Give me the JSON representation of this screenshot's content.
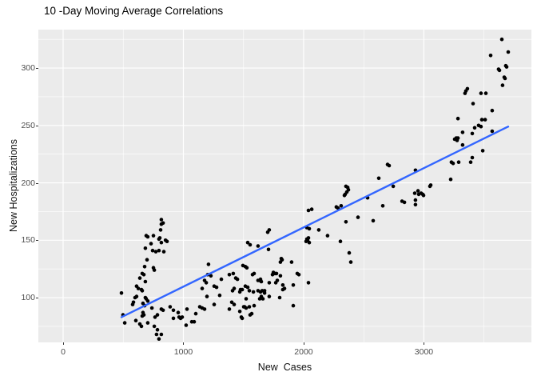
{
  "title": "10 -Day Moving Average Correlations",
  "chart_data": {
    "type": "scatter",
    "title": "10 -Day Moving Average Correlations",
    "xlabel": "New  Cases",
    "ylabel": "New Hospitalizations",
    "x_ticks": [
      0,
      1000,
      2000,
      3000
    ],
    "x_minor_ticks": [
      500,
      1500,
      2500,
      3500
    ],
    "y_ticks": [
      100,
      150,
      200,
      250,
      300
    ],
    "y_minor_ticks": [
      75,
      125,
      175,
      225,
      275,
      325
    ],
    "xlim": [
      -206,
      3894
    ],
    "ylim": [
      61,
      333.5
    ],
    "grid": true,
    "legend": "none",
    "colors": {
      "panel_background": "#EBEBEB",
      "grid_major": "#FFFFFF",
      "grid_minor": "#FFFFFF",
      "point": "#000000",
      "trend_line": "#3366FF",
      "axis_text": "#4D4D4D",
      "title_text": "#000000"
    },
    "trend_line": {
      "x1": 485,
      "y1": 83,
      "x2": 3701,
      "y2": 249
    },
    "points": [
      [
        485,
        104
      ],
      [
        498,
        85
      ],
      [
        512,
        78
      ],
      [
        578,
        94
      ],
      [
        585,
        96
      ],
      [
        598,
        100
      ],
      [
        605,
        80
      ],
      [
        611,
        110
      ],
      [
        611,
        101
      ],
      [
        625,
        108
      ],
      [
        638,
        117
      ],
      [
        638,
        77
      ],
      [
        651,
        107
      ],
      [
        651,
        75
      ],
      [
        658,
        121
      ],
      [
        658,
        106
      ],
      [
        658,
        84
      ],
      [
        664,
        95
      ],
      [
        664,
        87
      ],
      [
        671,
        120
      ],
      [
        671,
        85
      ],
      [
        678,
        127
      ],
      [
        678,
        93
      ],
      [
        684,
        143
      ],
      [
        684,
        114
      ],
      [
        684,
        100
      ],
      [
        691,
        154
      ],
      [
        691,
        99
      ],
      [
        698,
        133
      ],
      [
        704,
        153
      ],
      [
        704,
        97
      ],
      [
        704,
        78
      ],
      [
        731,
        147
      ],
      [
        738,
        91
      ],
      [
        744,
        141
      ],
      [
        751,
        154
      ],
      [
        751,
        126
      ],
      [
        758,
        124
      ],
      [
        758,
        75
      ],
      [
        764,
        83
      ],
      [
        771,
        140
      ],
      [
        777,
        68
      ],
      [
        784,
        85
      ],
      [
        784,
        72
      ],
      [
        797,
        151
      ],
      [
        797,
        141
      ],
      [
        797,
        64
      ],
      [
        804,
        152
      ],
      [
        811,
        159
      ],
      [
        817,
        168
      ],
      [
        817,
        164
      ],
      [
        817,
        148
      ],
      [
        817,
        90
      ],
      [
        817,
        68
      ],
      [
        831,
        165
      ],
      [
        831,
        89
      ],
      [
        837,
        140
      ],
      [
        851,
        150
      ],
      [
        864,
        149
      ],
      [
        890,
        92
      ],
      [
        917,
        89
      ],
      [
        917,
        82
      ],
      [
        957,
        87
      ],
      [
        964,
        83
      ],
      [
        977,
        82
      ],
      [
        990,
        83
      ],
      [
        1023,
        76
      ],
      [
        1030,
        90
      ],
      [
        1070,
        79
      ],
      [
        1090,
        79
      ],
      [
        1103,
        86
      ],
      [
        1136,
        92
      ],
      [
        1156,
        108
      ],
      [
        1156,
        91
      ],
      [
        1176,
        115
      ],
      [
        1176,
        90
      ],
      [
        1190,
        113
      ],
      [
        1196,
        101
      ],
      [
        1203,
        120
      ],
      [
        1209,
        129
      ],
      [
        1229,
        119
      ],
      [
        1256,
        110
      ],
      [
        1256,
        94
      ],
      [
        1276,
        109
      ],
      [
        1302,
        102
      ],
      [
        1316,
        116
      ],
      [
        1382,
        120
      ],
      [
        1382,
        90
      ],
      [
        1402,
        96
      ],
      [
        1409,
        106
      ],
      [
        1415,
        121
      ],
      [
        1422,
        108
      ],
      [
        1422,
        94
      ],
      [
        1435,
        117
      ],
      [
        1449,
        116
      ],
      [
        1469,
        105
      ],
      [
        1469,
        88
      ],
      [
        1475,
        107
      ],
      [
        1482,
        83
      ],
      [
        1489,
        107
      ],
      [
        1489,
        82
      ],
      [
        1495,
        128
      ],
      [
        1502,
        92
      ],
      [
        1509,
        92
      ],
      [
        1515,
        127
      ],
      [
        1515,
        110
      ],
      [
        1522,
        99
      ],
      [
        1522,
        91
      ],
      [
        1528,
        126
      ],
      [
        1535,
        148
      ],
      [
        1535,
        109
      ],
      [
        1548,
        106
      ],
      [
        1548,
        92
      ],
      [
        1555,
        146
      ],
      [
        1555,
        85
      ],
      [
        1568,
        86
      ],
      [
        1575,
        120
      ],
      [
        1582,
        105
      ],
      [
        1588,
        121
      ],
      [
        1588,
        93
      ],
      [
        1621,
        145
      ],
      [
        1621,
        115
      ],
      [
        1621,
        106
      ],
      [
        1635,
        115
      ],
      [
        1635,
        99
      ],
      [
        1641,
        116
      ],
      [
        1641,
        105
      ],
      [
        1648,
        114
      ],
      [
        1648,
        101
      ],
      [
        1655,
        106
      ],
      [
        1661,
        99
      ],
      [
        1675,
        106
      ],
      [
        1675,
        104
      ],
      [
        1701,
        157
      ],
      [
        1708,
        142
      ],
      [
        1714,
        159
      ],
      [
        1714,
        113
      ],
      [
        1714,
        101
      ],
      [
        1741,
        120
      ],
      [
        1748,
        122
      ],
      [
        1761,
        121
      ],
      [
        1768,
        113
      ],
      [
        1774,
        121
      ],
      [
        1781,
        115
      ],
      [
        1801,
        100
      ],
      [
        1807,
        131
      ],
      [
        1807,
        119
      ],
      [
        1814,
        134
      ],
      [
        1821,
        133
      ],
      [
        1827,
        111
      ],
      [
        1827,
        107
      ],
      [
        1841,
        108
      ],
      [
        1900,
        131
      ],
      [
        1914,
        111
      ],
      [
        1914,
        93
      ],
      [
        1947,
        121
      ],
      [
        1960,
        120
      ],
      [
        2020,
        149
      ],
      [
        2027,
        161
      ],
      [
        2027,
        151
      ],
      [
        2033,
        150
      ],
      [
        2040,
        176
      ],
      [
        2040,
        152
      ],
      [
        2040,
        113
      ],
      [
        2047,
        160
      ],
      [
        2047,
        148
      ],
      [
        2067,
        177
      ],
      [
        2126,
        159
      ],
      [
        2199,
        154
      ],
      [
        2272,
        179
      ],
      [
        2286,
        178
      ],
      [
        2306,
        149
      ],
      [
        2312,
        180
      ],
      [
        2339,
        189
      ],
      [
        2346,
        190
      ],
      [
        2352,
        197
      ],
      [
        2352,
        166
      ],
      [
        2359,
        192
      ],
      [
        2366,
        196
      ],
      [
        2372,
        194
      ],
      [
        2379,
        139
      ],
      [
        2392,
        131
      ],
      [
        2452,
        170
      ],
      [
        2532,
        187
      ],
      [
        2578,
        167
      ],
      [
        2625,
        204
      ],
      [
        2658,
        180
      ],
      [
        2698,
        216
      ],
      [
        2711,
        215
      ],
      [
        2745,
        197
      ],
      [
        2818,
        184
      ],
      [
        2838,
        183
      ],
      [
        2924,
        191
      ],
      [
        2930,
        211
      ],
      [
        2930,
        185
      ],
      [
        2930,
        181
      ],
      [
        2951,
        193
      ],
      [
        2957,
        190
      ],
      [
        2977,
        191
      ],
      [
        2990,
        190
      ],
      [
        2997,
        189
      ],
      [
        3050,
        197
      ],
      [
        3057,
        198
      ],
      [
        3223,
        203
      ],
      [
        3229,
        218
      ],
      [
        3243,
        217
      ],
      [
        3256,
        238
      ],
      [
        3269,
        239
      ],
      [
        3276,
        237
      ],
      [
        3283,
        256
      ],
      [
        3283,
        239
      ],
      [
        3289,
        218
      ],
      [
        3322,
        244
      ],
      [
        3322,
        233
      ],
      [
        3342,
        278
      ],
      [
        3349,
        280
      ],
      [
        3362,
        282
      ],
      [
        3389,
        218
      ],
      [
        3402,
        243
      ],
      [
        3402,
        222
      ],
      [
        3409,
        269
      ],
      [
        3422,
        248
      ],
      [
        3455,
        250
      ],
      [
        3475,
        278
      ],
      [
        3475,
        249
      ],
      [
        3482,
        255
      ],
      [
        3489,
        228
      ],
      [
        3509,
        255
      ],
      [
        3515,
        278
      ],
      [
        3555,
        311
      ],
      [
        3568,
        263
      ],
      [
        3568,
        245
      ],
      [
        3621,
        299
      ],
      [
        3628,
        298
      ],
      [
        3648,
        325
      ],
      [
        3654,
        285
      ],
      [
        3668,
        292
      ],
      [
        3675,
        291
      ],
      [
        3681,
        302
      ],
      [
        3688,
        301
      ],
      [
        3701,
        314
      ]
    ]
  }
}
